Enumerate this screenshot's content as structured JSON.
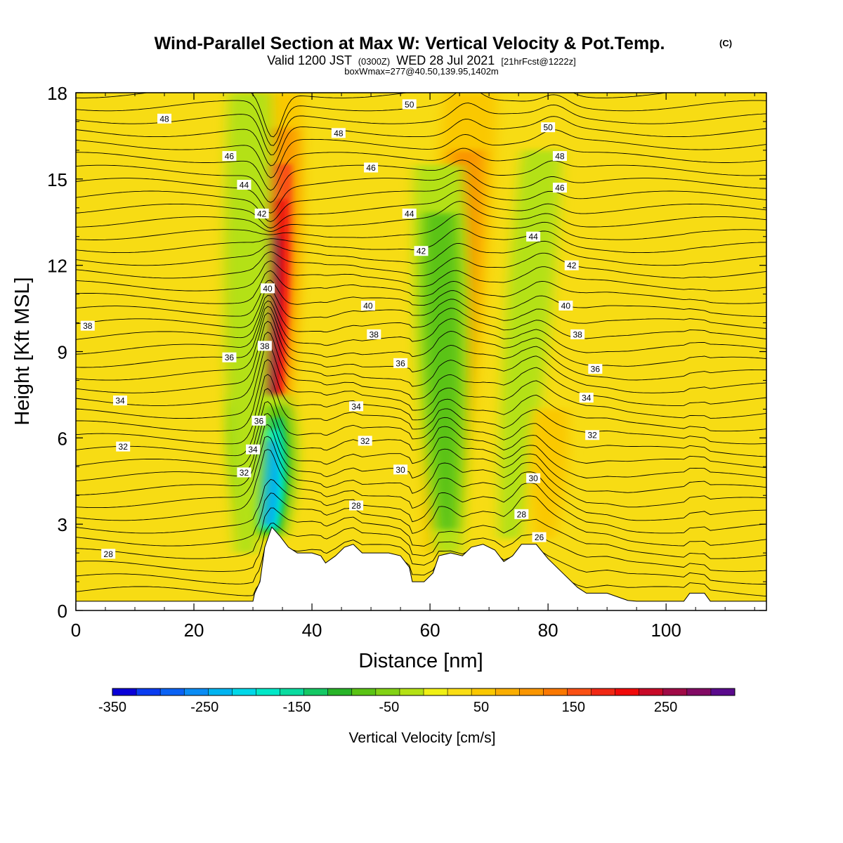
{
  "title": {
    "main": "Wind-Parallel Section at Max W: Vertical Velocity & Pot.Temp.",
    "copyright": "(C)",
    "valid_prefix": "Valid 1200 JST",
    "valid_zulu": "(0300Z)",
    "valid_date": "WED 28 Jul 2021",
    "fcst": "[21hrFcst@1222z]",
    "boxwmax": "boxWmax=277@40.50,139.95,1402m"
  },
  "chart_data": {
    "type": "heatmap",
    "xlabel": "Distance [nm]",
    "ylabel": "Height [Kft MSL]",
    "xlim": [
      0,
      117
    ],
    "ylim": [
      0,
      18
    ],
    "x_ticks": [
      0,
      20,
      40,
      60,
      80,
      100
    ],
    "y_ticks": [
      0,
      3,
      6,
      9,
      12,
      15,
      18
    ],
    "colorbar": {
      "label": "Vertical Velocity [cm/s]",
      "min": -350,
      "max": 325,
      "step": 25,
      "tick_values": [
        -350,
        -250,
        -150,
        -50,
        50,
        150,
        250
      ],
      "colors": [
        "#0a00d8",
        "#0a3cf0",
        "#0a62f4",
        "#0a8cf4",
        "#00b4f0",
        "#00d8e8",
        "#00e8c8",
        "#0adca0",
        "#14c864",
        "#28b428",
        "#5ac314",
        "#82d214",
        "#b4e114",
        "#f0f014",
        "#fade14",
        "#fac800",
        "#faae00",
        "#fa9600",
        "#fa7800",
        "#fa5014",
        "#f02814",
        "#f00a0a",
        "#c80a28",
        "#a00a46",
        "#820a64",
        "#5a0a8c"
      ]
    },
    "terrain_top_kft": [
      [
        0,
        0.32
      ],
      [
        30,
        0.32
      ],
      [
        30.3,
        0.6
      ],
      [
        31.2,
        1.0
      ],
      [
        32,
        2.2
      ],
      [
        33.2,
        2.9
      ],
      [
        34.5,
        2.6
      ],
      [
        36,
        2.2
      ],
      [
        37.5,
        2.0
      ],
      [
        40,
        2.0
      ],
      [
        41.5,
        1.9
      ],
      [
        42.3,
        1.65
      ],
      [
        44,
        1.9
      ],
      [
        45.5,
        2.2
      ],
      [
        47,
        2.3
      ],
      [
        48.5,
        2.0
      ],
      [
        50.5,
        2.0
      ],
      [
        53,
        2.0
      ],
      [
        55,
        1.9
      ],
      [
        56.5,
        1.5
      ],
      [
        57,
        1.0
      ],
      [
        59,
        1.0
      ],
      [
        60.5,
        1.3
      ],
      [
        61.5,
        1.9
      ],
      [
        63.5,
        2.0
      ],
      [
        65.5,
        1.9
      ],
      [
        67,
        2.2
      ],
      [
        69,
        2.3
      ],
      [
        71,
        2.1
      ],
      [
        72.5,
        1.7
      ],
      [
        74,
        1.9
      ],
      [
        75.5,
        2.3
      ],
      [
        78,
        2.3
      ],
      [
        80,
        1.8
      ],
      [
        82.5,
        1.3
      ],
      [
        85,
        0.8
      ],
      [
        86.5,
        0.6
      ],
      [
        90,
        0.6
      ],
      [
        93.5,
        0.35
      ],
      [
        95,
        0.32
      ],
      [
        103,
        0.32
      ],
      [
        104,
        0.6
      ],
      [
        106.5,
        0.6
      ],
      [
        107.5,
        0.32
      ],
      [
        117,
        0.32
      ]
    ],
    "vertical_velocity_features": [
      {
        "type": "updraft",
        "x": 31,
        "x_top": 33.3,
        "y_bottom": 2.5,
        "y_top": 18,
        "peak_cms": 277,
        "at_y": 10.0
      },
      {
        "type": "downdraft",
        "x": 32.5,
        "x_top": 31.3,
        "y_bottom": 2.5,
        "y_top": 7.5,
        "peak_cms": -260
      },
      {
        "type": "downdraft",
        "x": 28.8,
        "x_top": 29.5,
        "y_bottom": 2.0,
        "y_top": 18,
        "peak_cms": -90
      },
      {
        "type": "updraft",
        "x": 61.5,
        "x_top": 67.0,
        "y_bottom": 2.0,
        "y_top": 18,
        "peak_cms": 120
      },
      {
        "type": "downdraft",
        "x": 63.0,
        "x_top": 61.5,
        "y_bottom": 2.0,
        "y_top": 15.5,
        "peak_cms": -110
      },
      {
        "type": "downdraft",
        "x": 73.5,
        "x_top": 79.0,
        "y_bottom": 2.5,
        "y_top": 16.0,
        "peak_cms": -80
      },
      {
        "type": "updraft",
        "x": 79.5,
        "x_top": 80.5,
        "y_bottom": 2.5,
        "y_top": 7.0,
        "peak_cms": 60
      }
    ],
    "theta_contour_labels": [
      {
        "text": "48",
        "x": 15,
        "y": 17.1
      },
      {
        "text": "46",
        "x": 26,
        "y": 15.8
      },
      {
        "text": "44",
        "x": 28.5,
        "y": 14.8
      },
      {
        "text": "42",
        "x": 31.5,
        "y": 13.8
      },
      {
        "text": "40",
        "x": 32.5,
        "y": 11.2
      },
      {
        "text": "38",
        "x": 32,
        "y": 9.2
      },
      {
        "text": "36",
        "x": 31,
        "y": 6.6
      },
      {
        "text": "34",
        "x": 30,
        "y": 5.6
      },
      {
        "text": "32",
        "x": 28.5,
        "y": 4.8
      },
      {
        "text": "36",
        "x": 26,
        "y": 8.8
      },
      {
        "text": "34",
        "x": 7.5,
        "y": 7.3
      },
      {
        "text": "32",
        "x": 8,
        "y": 5.7
      },
      {
        "text": "38",
        "x": 2,
        "y": 9.9
      },
      {
        "text": "28",
        "x": 5.5,
        "y": 1.97
      },
      {
        "text": "50",
        "x": 56.5,
        "y": 17.6
      },
      {
        "text": "48",
        "x": 44.5,
        "y": 16.6
      },
      {
        "text": "46",
        "x": 50,
        "y": 15.4
      },
      {
        "text": "44",
        "x": 56.5,
        "y": 13.8
      },
      {
        "text": "42",
        "x": 58.5,
        "y": 12.5
      },
      {
        "text": "40",
        "x": 49.5,
        "y": 10.6
      },
      {
        "text": "38",
        "x": 50.5,
        "y": 9.6
      },
      {
        "text": "36",
        "x": 55,
        "y": 8.6
      },
      {
        "text": "34",
        "x": 47.5,
        "y": 7.1
      },
      {
        "text": "32",
        "x": 49,
        "y": 5.9
      },
      {
        "text": "30",
        "x": 55,
        "y": 4.9
      },
      {
        "text": "28",
        "x": 47.5,
        "y": 3.65
      },
      {
        "text": "50",
        "x": 80,
        "y": 16.8
      },
      {
        "text": "48",
        "x": 82,
        "y": 15.8
      },
      {
        "text": "46",
        "x": 82,
        "y": 14.7
      },
      {
        "text": "44",
        "x": 77.5,
        "y": 13.0
      },
      {
        "text": "42",
        "x": 84,
        "y": 12.0
      },
      {
        "text": "40",
        "x": 83,
        "y": 10.6
      },
      {
        "text": "38",
        "x": 85,
        "y": 9.6
      },
      {
        "text": "36",
        "x": 88,
        "y": 8.4
      },
      {
        "text": "34",
        "x": 86.5,
        "y": 7.4
      },
      {
        "text": "32",
        "x": 87.5,
        "y": 6.1
      },
      {
        "text": "30",
        "x": 77.5,
        "y": 4.6
      },
      {
        "text": "28",
        "x": 75.5,
        "y": 3.35
      },
      {
        "text": "26",
        "x": 78.5,
        "y": 2.55
      }
    ]
  }
}
